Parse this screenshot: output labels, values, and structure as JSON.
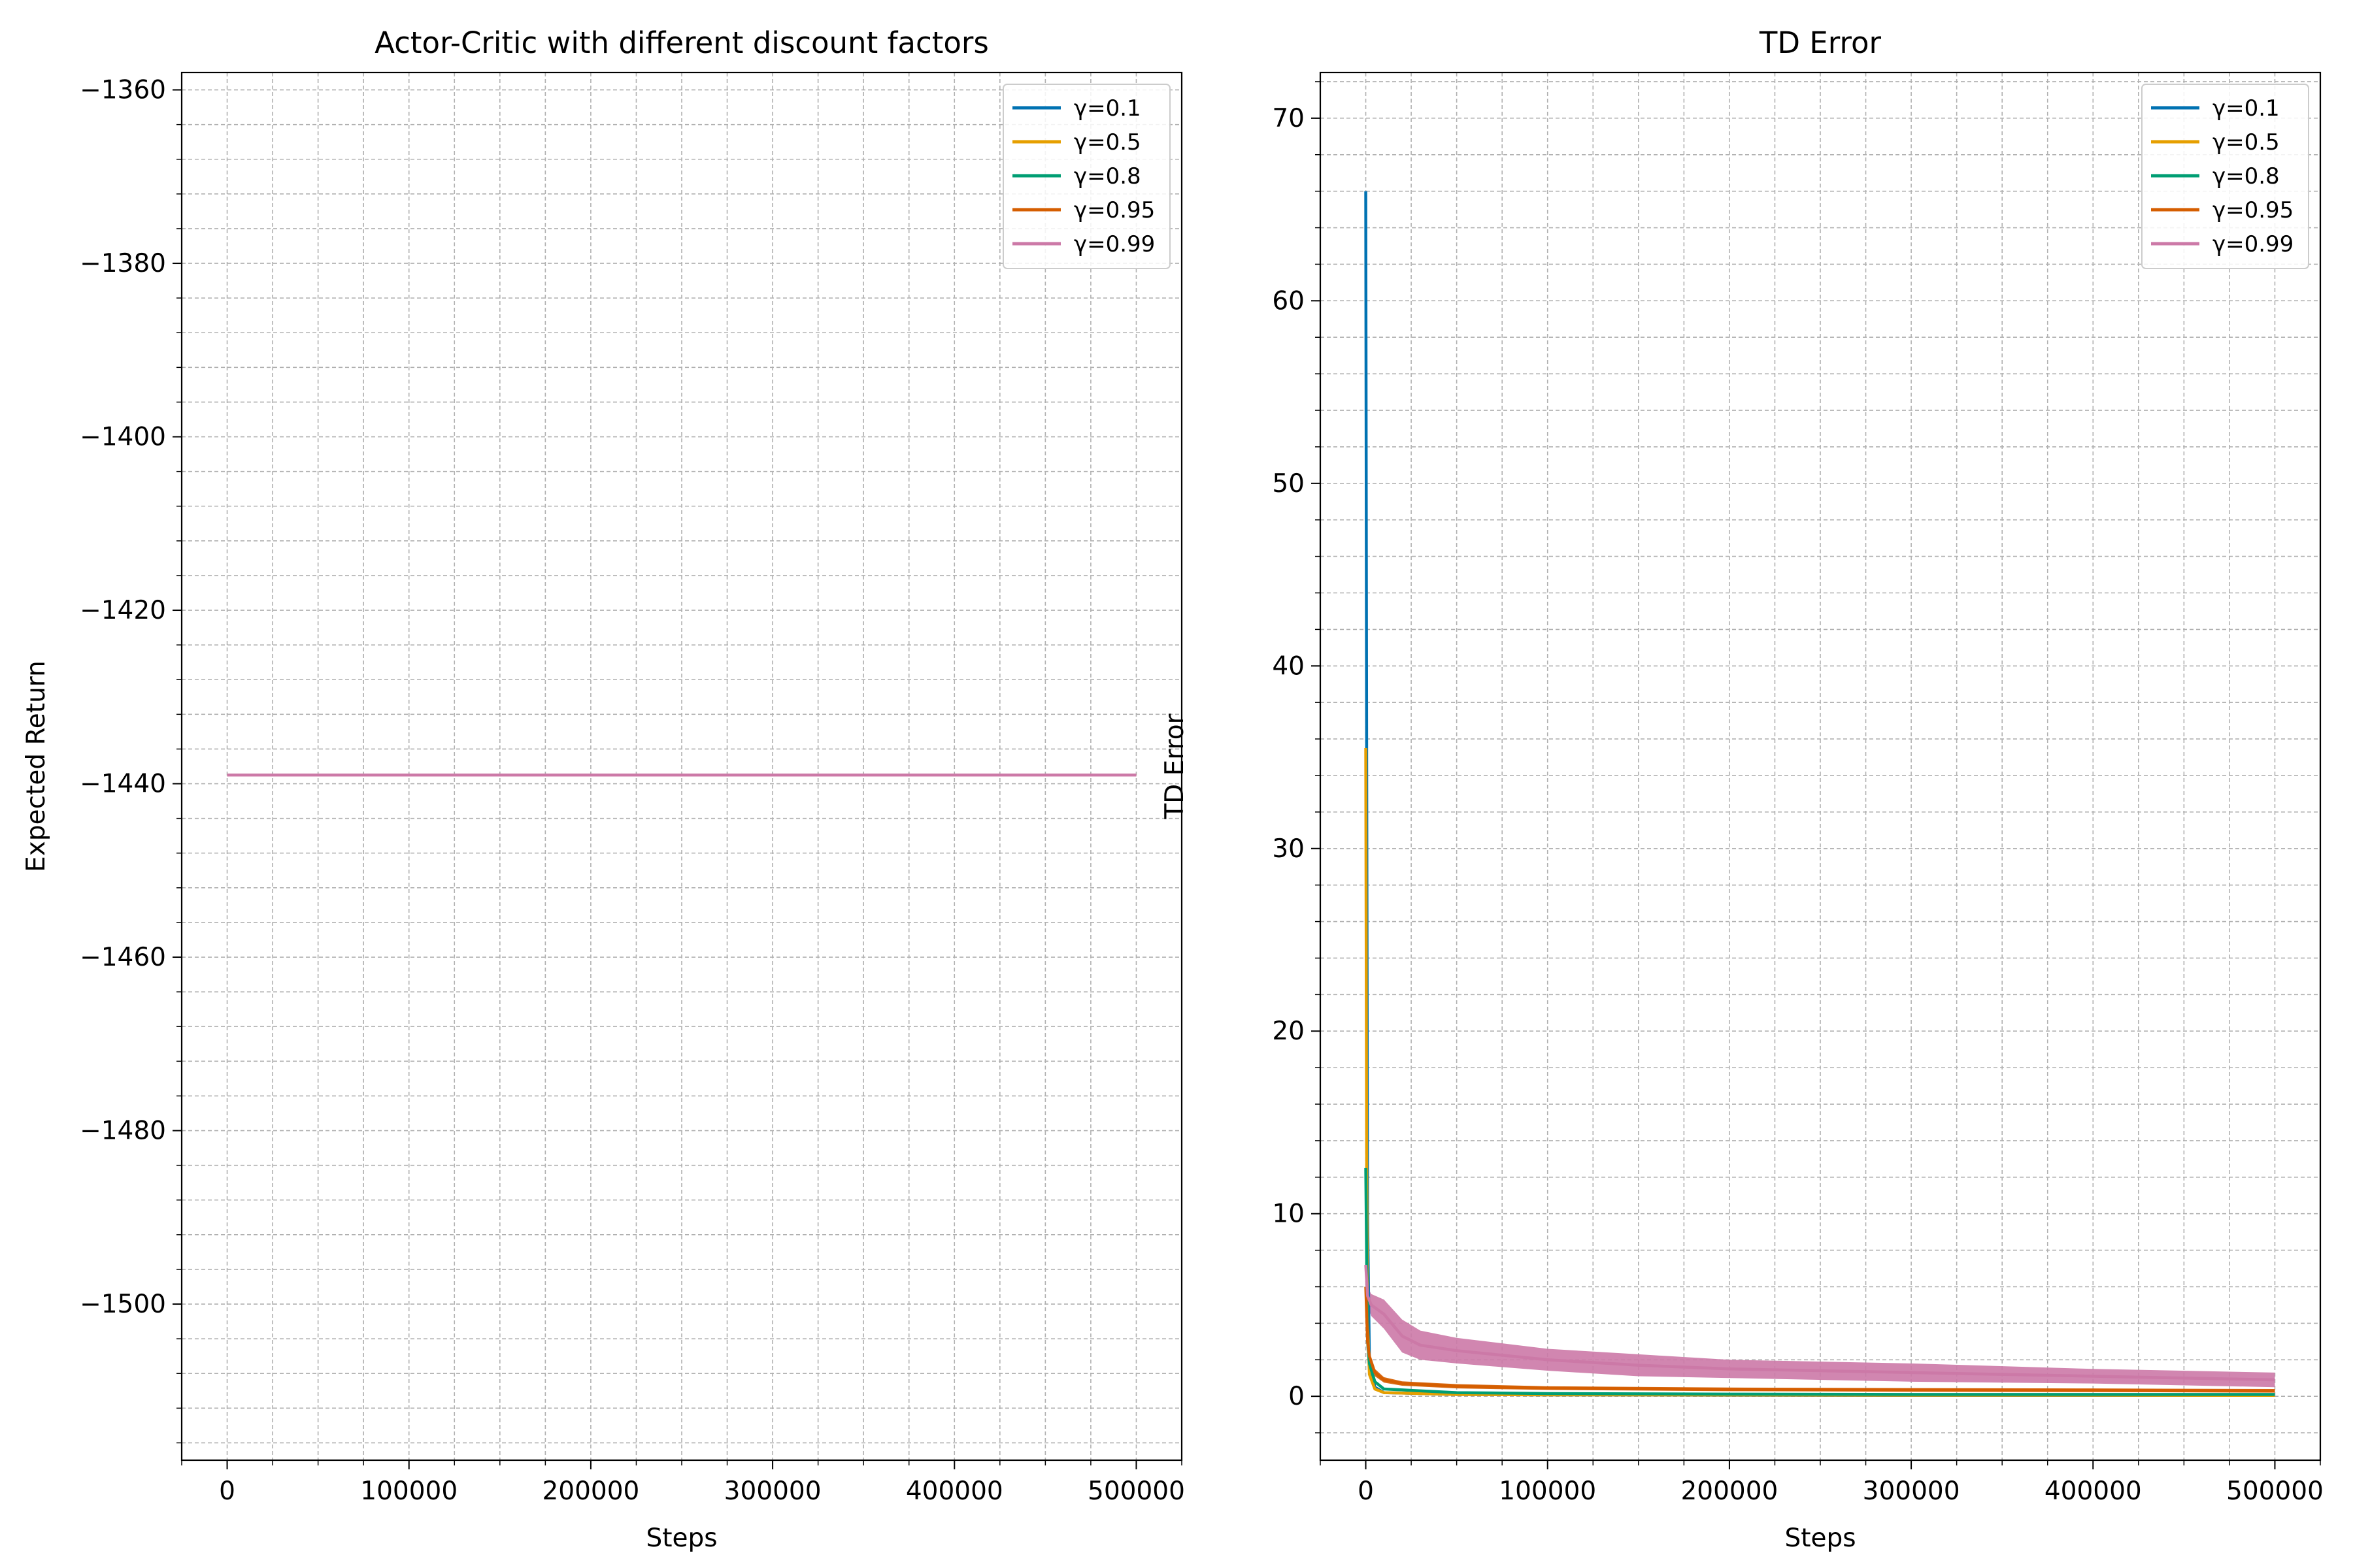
{
  "chart_data": [
    {
      "type": "line",
      "title": "Actor-Critic with different discount factors",
      "xlabel": "Steps",
      "ylabel": "Expected Return",
      "xlim": [
        -25000,
        525000
      ],
      "ylim": [
        -1518,
        -1358
      ],
      "xticks": [
        0,
        100000,
        200000,
        300000,
        400000,
        500000
      ],
      "xtick_labels": [
        "0",
        "100000",
        "200000",
        "300000",
        "400000",
        "500000"
      ],
      "yticks": [
        -1500,
        -1480,
        -1460,
        -1440,
        -1420,
        -1400,
        -1380,
        -1360
      ],
      "ytick_labels": [
        "−1500",
        "−1480",
        "−1460",
        "−1440",
        "−1420",
        "−1400",
        "−1380",
        "−1360"
      ],
      "grid": true,
      "legend_position": "top-right",
      "series": [
        {
          "name": "γ=0.1",
          "color": "#0072b2",
          "x": [
            0,
            500000
          ],
          "y": [
            -1439,
            -1439
          ]
        },
        {
          "name": "γ=0.5",
          "color": "#e69f00",
          "x": [
            0,
            500000
          ],
          "y": [
            -1439,
            -1439
          ]
        },
        {
          "name": "γ=0.8",
          "color": "#009e73",
          "x": [
            0,
            500000
          ],
          "y": [
            -1439,
            -1439
          ]
        },
        {
          "name": "γ=0.95",
          "color": "#d55e00",
          "x": [
            0,
            500000
          ],
          "y": [
            -1439,
            -1439
          ]
        },
        {
          "name": "γ=0.99",
          "color": "#cc79a7",
          "x": [
            0,
            500000
          ],
          "y": [
            -1439,
            -1439
          ]
        }
      ]
    },
    {
      "type": "line",
      "title": "TD Error",
      "xlabel": "Steps",
      "ylabel": "TD Error",
      "xlim": [
        -25000,
        525000
      ],
      "ylim": [
        -3.5,
        72.5
      ],
      "xticks": [
        0,
        100000,
        200000,
        300000,
        400000,
        500000
      ],
      "xtick_labels": [
        "0",
        "100000",
        "200000",
        "300000",
        "400000",
        "500000"
      ],
      "yticks": [
        0,
        10,
        20,
        30,
        40,
        50,
        60,
        70
      ],
      "ytick_labels": [
        "0",
        "10",
        "20",
        "30",
        "40",
        "50",
        "60",
        "70"
      ],
      "grid": true,
      "legend_position": "top-right",
      "series": [
        {
          "name": "γ=0.1",
          "color": "#0072b2",
          "x": [
            0,
            500,
            1000,
            2000,
            5000,
            10000,
            50000,
            100000,
            200000,
            300000,
            400000,
            500000
          ],
          "y": [
            66,
            35,
            10,
            2,
            0.5,
            0.2,
            0.1,
            0.08,
            0.06,
            0.05,
            0.05,
            0.05
          ]
        },
        {
          "name": "γ=0.5",
          "color": "#e69f00",
          "x": [
            0,
            500,
            1000,
            2000,
            5000,
            10000,
            50000,
            100000,
            200000,
            300000,
            400000,
            500000
          ],
          "y": [
            35.5,
            13,
            4,
            1.2,
            0.4,
            0.2,
            0.1,
            0.08,
            0.07,
            0.06,
            0.06,
            0.05
          ]
        },
        {
          "name": "γ=0.8",
          "color": "#009e73",
          "x": [
            0,
            500,
            1000,
            2000,
            5000,
            10000,
            50000,
            100000,
            200000,
            300000,
            400000,
            500000
          ],
          "y": [
            12.5,
            7.5,
            3,
            1.8,
            0.8,
            0.4,
            0.2,
            0.15,
            0.12,
            0.1,
            0.1,
            0.1
          ]
        },
        {
          "name": "γ=0.95",
          "color": "#d55e00",
          "x": [
            0,
            500,
            1000,
            2000,
            5000,
            10000,
            20000,
            50000,
            100000,
            200000,
            300000,
            400000,
            500000
          ],
          "y": [
            6,
            4.5,
            3,
            2.2,
            1.3,
            0.9,
            0.7,
            0.55,
            0.45,
            0.38,
            0.35,
            0.33,
            0.3
          ],
          "band": [
            0.3,
            0.25,
            0.25,
            0.2,
            0.2,
            0.15,
            0.12,
            0.12,
            0.1,
            0.1,
            0.1,
            0.1,
            0.1
          ]
        },
        {
          "name": "γ=0.99",
          "color": "#cc79a7",
          "x": [
            0,
            1000,
            3000,
            10000,
            20000,
            30000,
            50000,
            100000,
            150000,
            200000,
            300000,
            400000,
            500000
          ],
          "y": [
            7.2,
            5.5,
            5,
            4.5,
            3.3,
            2.8,
            2.5,
            2,
            1.7,
            1.5,
            1.3,
            1.1,
            0.9
          ],
          "band": [
            0.4,
            0.5,
            0.6,
            0.8,
            0.9,
            0.8,
            0.7,
            0.6,
            0.6,
            0.5,
            0.5,
            0.4,
            0.4
          ]
        }
      ]
    }
  ]
}
